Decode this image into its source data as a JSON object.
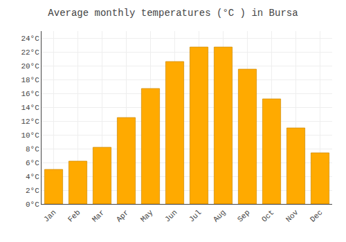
{
  "chart_data": {
    "type": "bar",
    "title": "Average monthly temperatures (°C ) in Bursa",
    "categories": [
      "Jan",
      "Feb",
      "Mar",
      "Apr",
      "May",
      "Jun",
      "Jul",
      "Aug",
      "Sep",
      "Oct",
      "Nov",
      "Dec"
    ],
    "values": [
      5.0,
      6.2,
      8.2,
      12.5,
      16.7,
      20.6,
      22.7,
      22.7,
      19.5,
      15.2,
      11.0,
      7.4
    ],
    "color": "#FFAA00",
    "ylim": [
      0,
      25
    ],
    "yticks": [
      {
        "value": 0,
        "label": "0°C"
      },
      {
        "value": 2,
        "label": "2°C"
      },
      {
        "value": 4,
        "label": "4°C"
      },
      {
        "value": 6,
        "label": "6°C"
      },
      {
        "value": 8,
        "label": "8°C"
      },
      {
        "value": 10,
        "label": "10°C"
      },
      {
        "value": 12,
        "label": "12°C"
      },
      {
        "value": 14,
        "label": "14°C"
      },
      {
        "value": 16,
        "label": "16°C"
      },
      {
        "value": 18,
        "label": "18°C"
      },
      {
        "value": 20,
        "label": "20°C"
      },
      {
        "value": 22,
        "label": "22°C"
      },
      {
        "value": 24,
        "label": "24°C"
      }
    ],
    "grid": true
  }
}
